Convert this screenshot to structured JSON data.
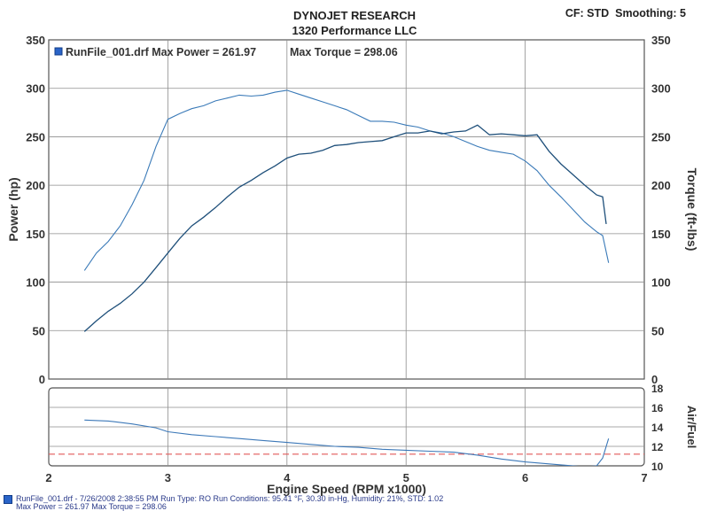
{
  "header": {
    "title": "DYNOJET RESEARCH",
    "subtitle": "1320 Performance LLC",
    "cf": "CF: STD",
    "smoothing": "Smoothing: 5"
  },
  "legend": {
    "run_file": "RunFile_001.drf",
    "max_power": "Max Power = 261.97",
    "max_torque": "Max Torque = 298.06"
  },
  "footer": {
    "line1": "RunFile_001.drf - 7/26/2008 2:38:55 PM  Run Type: RO  Run Conditions: 95.41 °F, 30.30 in-Hg,  Humidity:  21%, STD: 1.02",
    "line2": "Max Power = 261.97  Max Torque = 298.06"
  },
  "colors": {
    "power": "#1e4f7a",
    "torque": "#3a7ab8",
    "afr": "#3c78b8",
    "reference": "#e35a5a",
    "grid": "#8e8e8e"
  },
  "chart_data": [
    {
      "type": "line",
      "title": "",
      "xlabel": "Engine Speed (RPM x1000)",
      "ylabel": "Power (hp)",
      "y2label": "Torque (ft-lbs)",
      "xlim": [
        2,
        7
      ],
      "ylim": [
        0,
        350
      ],
      "y2lim": [
        0,
        350
      ],
      "xticks": [
        2,
        3,
        4,
        5,
        6,
        7
      ],
      "yticks": [
        0,
        50,
        100,
        150,
        200,
        250,
        300,
        350
      ],
      "grid": true,
      "legend": "top-left",
      "series": [
        {
          "name": "Power",
          "axis": "left",
          "x": [
            2.3,
            2.4,
            2.5,
            2.6,
            2.7,
            2.8,
            2.9,
            3.0,
            3.1,
            3.2,
            3.3,
            3.4,
            3.5,
            3.6,
            3.7,
            3.8,
            3.9,
            4.0,
            4.1,
            4.2,
            4.3,
            4.4,
            4.5,
            4.6,
            4.7,
            4.8,
            4.9,
            5.0,
            5.1,
            5.2,
            5.3,
            5.4,
            5.5,
            5.6,
            5.7,
            5.8,
            5.9,
            6.0,
            6.1,
            6.2,
            6.3,
            6.4,
            6.5,
            6.6,
            6.65,
            6.68
          ],
          "y": [
            49,
            60,
            70,
            78,
            88,
            100,
            115,
            130,
            145,
            158,
            167,
            177,
            188,
            198,
            205,
            213,
            220,
            228,
            232,
            233,
            236,
            241,
            242,
            244,
            245,
            246,
            250,
            254,
            254,
            256,
            253,
            255,
            256,
            262,
            252,
            253,
            252,
            251,
            252,
            235,
            222,
            211,
            200,
            190,
            188,
            160
          ]
        },
        {
          "name": "Torque",
          "axis": "right",
          "x": [
            2.3,
            2.4,
            2.5,
            2.6,
            2.7,
            2.8,
            2.9,
            3.0,
            3.1,
            3.2,
            3.3,
            3.4,
            3.5,
            3.6,
            3.7,
            3.8,
            3.9,
            4.0,
            4.1,
            4.2,
            4.3,
            4.4,
            4.5,
            4.6,
            4.7,
            4.8,
            4.9,
            5.0,
            5.1,
            5.2,
            5.3,
            5.4,
            5.5,
            5.6,
            5.7,
            5.8,
            5.9,
            6.0,
            6.1,
            6.2,
            6.3,
            6.4,
            6.5,
            6.6,
            6.65,
            6.7
          ],
          "y": [
            112,
            130,
            142,
            158,
            180,
            205,
            240,
            268,
            274,
            279,
            282,
            287,
            290,
            293,
            292,
            293,
            296,
            298,
            294,
            290,
            286,
            282,
            278,
            272,
            266,
            266,
            265,
            262,
            260,
            256,
            254,
            250,
            245,
            240,
            236,
            234,
            232,
            225,
            215,
            200,
            188,
            175,
            162,
            152,
            148,
            120
          ]
        }
      ]
    },
    {
      "type": "line",
      "title": "",
      "xlabel": "Engine Speed (RPM x1000)",
      "ylabel": "Air/Fuel",
      "xlim": [
        2,
        7
      ],
      "ylim": [
        10,
        18
      ],
      "yticks": [
        10,
        12,
        14,
        16,
        18
      ],
      "grid": true,
      "series": [
        {
          "name": "Air/Fuel",
          "x": [
            2.3,
            2.5,
            2.7,
            2.9,
            3.0,
            3.2,
            3.4,
            3.6,
            3.8,
            4.0,
            4.2,
            4.4,
            4.6,
            4.8,
            5.0,
            5.2,
            5.4,
            5.6,
            5.8,
            6.0,
            6.2,
            6.4,
            6.5,
            6.6,
            6.65,
            6.7
          ],
          "y": [
            14.7,
            14.6,
            14.3,
            13.9,
            13.5,
            13.2,
            13.0,
            12.8,
            12.6,
            12.4,
            12.2,
            12.0,
            11.9,
            11.7,
            11.6,
            11.5,
            11.4,
            11.1,
            10.7,
            10.4,
            10.2,
            10.0,
            9.9,
            10.0,
            10.8,
            12.8
          ]
        },
        {
          "name": "",
          "dashed": true,
          "x": [
            2,
            7
          ],
          "y": [
            11.2,
            11.2
          ]
        }
      ]
    }
  ]
}
